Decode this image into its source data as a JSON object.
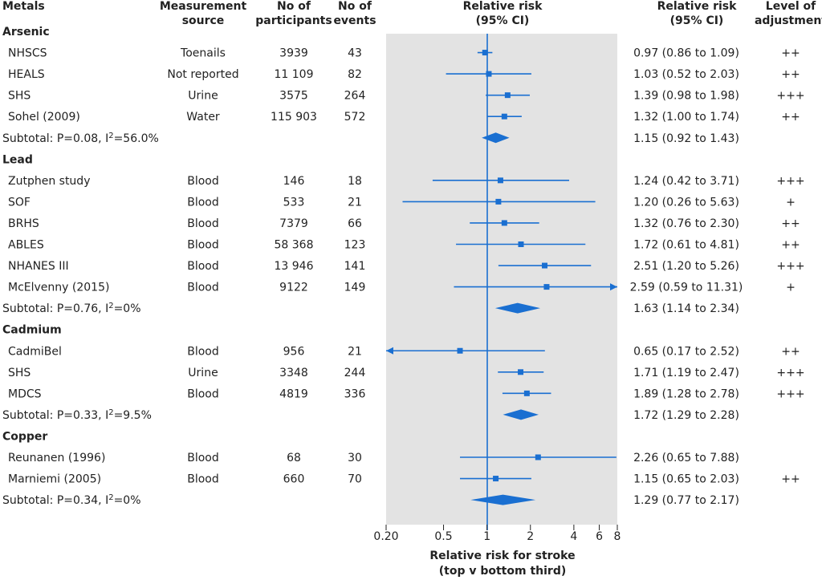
{
  "headers": {
    "metals": "Metals",
    "measurement_source": [
      "Measurement",
      "source"
    ],
    "participants": [
      "No of",
      "participants"
    ],
    "events": [
      "No of",
      "events"
    ],
    "rr_plot": [
      "Relative risk",
      "(95% CI)"
    ],
    "rr_text": [
      "Relative risk",
      "(95% CI)"
    ],
    "adjustment": [
      "Level of",
      "adjustment"
    ]
  },
  "colors": {
    "marker": "#1a6fd1",
    "shade": "#e3e3e3",
    "text": "#222222"
  },
  "chart_data": {
    "type": "forest",
    "x_scale": "log",
    "xlim": [
      0.2,
      8
    ],
    "reference_line": 1,
    "xticks": [
      0.2,
      0.5,
      1,
      2,
      4,
      6,
      8
    ],
    "xtick_labels": [
      "0.20",
      "0.5",
      "1",
      "2",
      "4",
      "6",
      "8"
    ],
    "xlabel": [
      "Relative risk for stroke",
      "(top v bottom third)"
    ],
    "groups": [
      {
        "name": "Arsenic",
        "studies": [
          {
            "study": "NHSCS",
            "source": "Toenails",
            "participants": "3939",
            "events": "43",
            "rr": 0.97,
            "lo": 0.86,
            "hi": 1.09,
            "rr_text": "0.97 (0.86 to 1.09)",
            "adjustment": "++"
          },
          {
            "study": "HEALS",
            "source": "Not reported",
            "participants": "11 109",
            "events": "82",
            "rr": 1.03,
            "lo": 0.52,
            "hi": 2.03,
            "rr_text": "1.03 (0.52 to 2.03)",
            "adjustment": "++"
          },
          {
            "study": "SHS",
            "source": "Urine",
            "participants": "3575",
            "events": "264",
            "rr": 1.39,
            "lo": 0.98,
            "hi": 1.98,
            "rr_text": "1.39 (0.98 to 1.98)",
            "adjustment": "+++"
          },
          {
            "study": "Sohel (2009)",
            "source": "Water",
            "participants": "115 903",
            "events": "572",
            "rr": 1.32,
            "lo": 1.0,
            "hi": 1.74,
            "rr_text": "1.32 (1.00 to 1.74)",
            "adjustment": "++"
          }
        ],
        "subtotal": {
          "label": "Subtotal: P=0.08, I",
          "sup": "2",
          "label_end": "=56.0%",
          "rr": 1.15,
          "lo": 0.92,
          "hi": 1.43,
          "rr_text": "1.15 (0.92 to 1.43)"
        }
      },
      {
        "name": "Lead",
        "studies": [
          {
            "study": "Zutphen study",
            "source": "Blood",
            "participants": "146",
            "events": "18",
            "rr": 1.24,
            "lo": 0.42,
            "hi": 3.71,
            "rr_text": "1.24 (0.42 to 3.71)",
            "adjustment": "+++"
          },
          {
            "study": "SOF",
            "source": "Blood",
            "participants": "533",
            "events": "21",
            "rr": 1.2,
            "lo": 0.26,
            "hi": 5.63,
            "rr_text": "1.20 (0.26 to 5.63)",
            "adjustment": "+"
          },
          {
            "study": "BRHS",
            "source": "Blood",
            "participants": "7379",
            "events": "66",
            "rr": 1.32,
            "lo": 0.76,
            "hi": 2.3,
            "rr_text": "1.32 (0.76 to 2.30)",
            "adjustment": "++"
          },
          {
            "study": "ABLES",
            "source": "Blood",
            "participants": "58 368",
            "events": "123",
            "rr": 1.72,
            "lo": 0.61,
            "hi": 4.81,
            "rr_text": "1.72 (0.61 to 4.81)",
            "adjustment": "++"
          },
          {
            "study": "NHANES III",
            "source": "Blood",
            "participants": "13 946",
            "events": "141",
            "rr": 2.51,
            "lo": 1.2,
            "hi": 5.26,
            "rr_text": "2.51 (1.20 to 5.26)",
            "adjustment": "+++"
          },
          {
            "study": "McElvenny (2015)",
            "source": "Blood",
            "participants": "9122",
            "events": "149",
            "rr": 2.59,
            "lo": 0.59,
            "hi": 11.31,
            "rr_text": "2.59 (0.59 to 11.31)",
            "adjustment": "+"
          }
        ],
        "subtotal": {
          "label": "Subtotal: P=0.76, I",
          "sup": "2",
          "label_end": "=0%",
          "rr": 1.63,
          "lo": 1.14,
          "hi": 2.34,
          "rr_text": "1.63 (1.14 to 2.34)"
        }
      },
      {
        "name": "Cadmium",
        "studies": [
          {
            "study": "CadmiBel",
            "source": "Blood",
            "participants": "956",
            "events": "21",
            "rr": 0.65,
            "lo": 0.17,
            "hi": 2.52,
            "rr_text": "0.65 (0.17 to 2.52)",
            "adjustment": "++"
          },
          {
            "study": "SHS",
            "source": "Urine",
            "participants": "3348",
            "events": "244",
            "rr": 1.71,
            "lo": 1.19,
            "hi": 2.47,
            "rr_text": "1.71 (1.19 to 2.47)",
            "adjustment": "+++"
          },
          {
            "study": "MDCS",
            "source": "Blood",
            "participants": "4819",
            "events": "336",
            "rr": 1.89,
            "lo": 1.28,
            "hi": 2.78,
            "rr_text": "1.89 (1.28 to 2.78)",
            "adjustment": "+++"
          }
        ],
        "subtotal": {
          "label": "Subtotal: P=0.33, I",
          "sup": "2",
          "label_end": "=9.5%",
          "rr": 1.72,
          "lo": 1.29,
          "hi": 2.28,
          "rr_text": "1.72 (1.29 to 2.28)"
        }
      },
      {
        "name": "Copper",
        "studies": [
          {
            "study": "Reunanen (1996)",
            "source": "Blood",
            "participants": "68",
            "events": "30",
            "rr": 2.26,
            "lo": 0.65,
            "hi": 7.88,
            "rr_text": "2.26 (0.65 to 7.88)",
            "adjustment": ""
          },
          {
            "study": "Marniemi (2005)",
            "source": "Blood",
            "participants": "660",
            "events": "70",
            "rr": 1.15,
            "lo": 0.65,
            "hi": 2.03,
            "rr_text": "1.15 (0.65 to 2.03)",
            "adjustment": "++"
          }
        ],
        "subtotal": {
          "label": "Subtotal: P=0.34, I",
          "sup": "2",
          "label_end": "=0%",
          "rr": 1.29,
          "lo": 0.77,
          "hi": 2.17,
          "rr_text": "1.29 (0.77 to 2.17)"
        }
      }
    ]
  }
}
